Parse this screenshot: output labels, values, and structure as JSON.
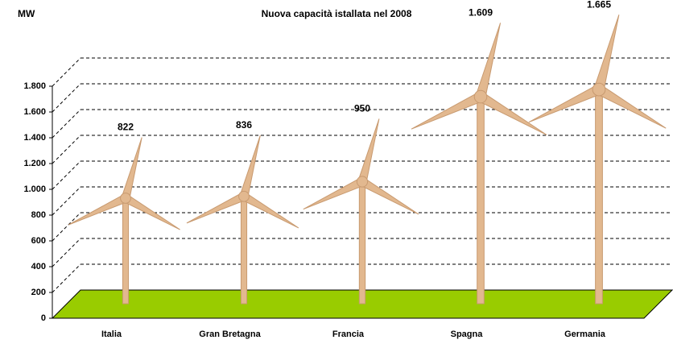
{
  "chart_data": {
    "type": "pictogram-bar",
    "title": "Nuova capacità istallata nel 2008",
    "y_label": "MW",
    "categories": [
      "Italia",
      "Gran Bretagna",
      "Francia",
      "Spagna",
      "Germania"
    ],
    "values": [
      822,
      836,
      950,
      1609,
      1665
    ],
    "value_labels": [
      "822",
      "836",
      "950",
      "1.609",
      "1.665"
    ],
    "color": "#e2b88f",
    "floor_color": "#99cc00",
    "ylim": [
      0,
      1800
    ],
    "yticks": [
      0,
      200,
      400,
      600,
      800,
      {
        "value": 1000,
        "label": "1.000"
      },
      {
        "value": 1200,
        "label": "1.200"
      },
      {
        "value": 1400,
        "label": "1.400"
      },
      {
        "value": 1600,
        "label": "1.600"
      },
      {
        "value": 1800,
        "label": "1.800"
      }
    ],
    "grid": true
  }
}
